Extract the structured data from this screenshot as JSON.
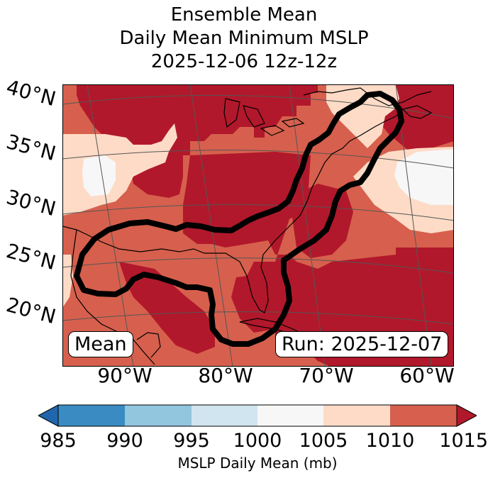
{
  "title_lines": [
    "Ensemble Mean",
    "Daily Mean Minimum MSLP",
    "2025-12-06 12z-12z"
  ],
  "lat_labels": [
    "40°N",
    "35°N",
    "30°N",
    "25°N",
    "20°N"
  ],
  "lon_labels": [
    "90°W",
    "80°W",
    "70°W",
    "60°W"
  ],
  "boxes": {
    "left": "Mean",
    "right": "Run: 2025-12-07"
  },
  "colorbar": {
    "ticks": [
      "985",
      "990",
      "995",
      "1000",
      "1005",
      "1010",
      "1015"
    ],
    "label": "MSLP Daily Mean (mb)",
    "colors": [
      "#3a8bc2",
      "#92c5de",
      "#d1e5f0",
      "#f7f7f7",
      "#fddbc7",
      "#d6604d",
      "#b2182b"
    ],
    "extend_low_color": "#2166ac",
    "extend_high_color": "#b2182b"
  },
  "fill_colors": {
    "lt1005": "#f7f7f7",
    "lt1010": "#fddbc7",
    "lt1015": "#d6604d",
    "ge1015": "#b2182b"
  },
  "outline_color": "#000000"
}
